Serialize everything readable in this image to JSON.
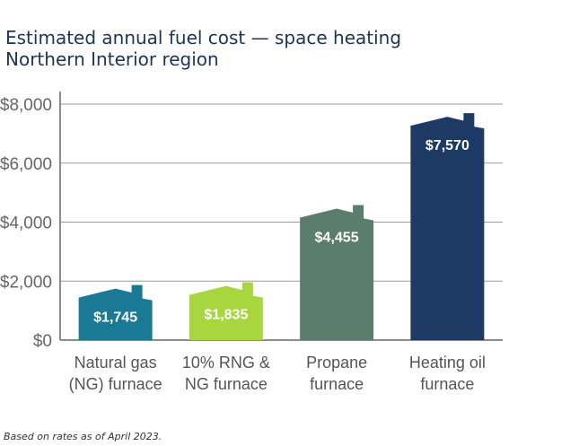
{
  "title_line1": "Estimated annual fuel cost — space heating",
  "title_line2": "Northern Interior region",
  "footnote": "Based on rates as of April 2023.",
  "chart_data": {
    "type": "bar",
    "title": "Estimated annual fuel cost — space heating",
    "subtitle": "Northern Interior region",
    "categories": [
      [
        "Natural gas",
        "(NG) furnace"
      ],
      [
        "10% RNG &",
        "NG furnace"
      ],
      [
        "Propane",
        "furnace"
      ],
      [
        "Heating oil",
        "furnace"
      ]
    ],
    "values": [
      1745,
      1835,
      4455,
      7570
    ],
    "value_labels": [
      "$1,745",
      "$1,835",
      "$4,455",
      "$7,570"
    ],
    "bar_colors": [
      "#1a7a96",
      "#a8d63e",
      "#5b7d6e",
      "#1c3a64"
    ],
    "bar_shape": "house",
    "ylim": [
      0,
      8000
    ],
    "yticks": [
      0,
      2000,
      4000,
      6000,
      8000
    ],
    "ytick_labels": [
      "$0",
      "$2,000",
      "$4,000",
      "$6,000",
      "$8,000"
    ],
    "grid": true,
    "xlabel": "",
    "ylabel": ""
  }
}
